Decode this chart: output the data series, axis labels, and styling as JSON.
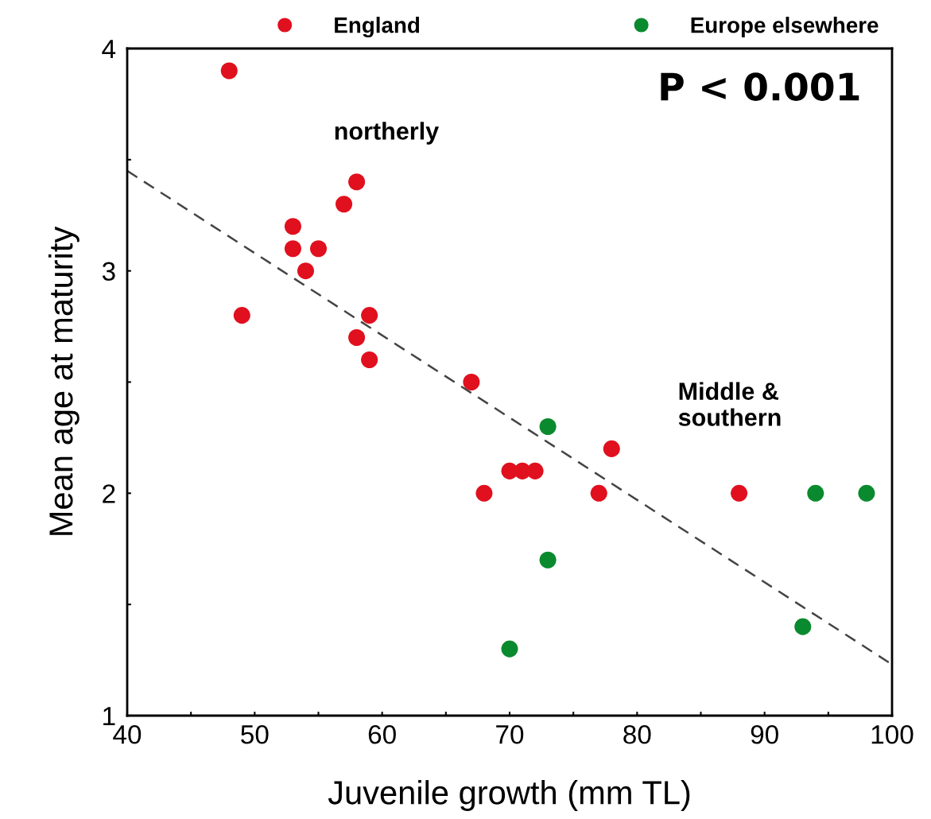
{
  "chart_data": {
    "type": "scatter",
    "xlabel": "Juvenile growth (mm TL)",
    "ylabel": "Mean age at maturity",
    "annotations": [
      "P < 0.001",
      "northerly",
      "Middle &\nsouthern"
    ],
    "series": [
      {
        "name": "England",
        "color": "#e0101f",
        "x": [
          48,
          49,
          53,
          53,
          54,
          55,
          57,
          58,
          58,
          59,
          59,
          67,
          68,
          70,
          71,
          72,
          77,
          78,
          88
        ],
        "values": [
          3.9,
          2.8,
          3.2,
          3.1,
          3.0,
          3.1,
          3.3,
          3.4,
          2.7,
          2.8,
          2.6,
          2.5,
          2.0,
          2.1,
          2.1,
          2.1,
          2.0,
          2.2,
          2.0
        ]
      },
      {
        "name": "Europe elsewhere",
        "color": "#0a8a2e",
        "x": [
          70,
          73,
          73,
          93,
          94,
          98
        ],
        "values": [
          1.3,
          1.7,
          2.3,
          1.4,
          2.0,
          2.0
        ]
      },
      {
        "type": "line",
        "color": "#444444",
        "line_style": "dashed",
        "marker": "none",
        "x": [
          40,
          100
        ],
        "values": [
          3.45,
          1.23
        ]
      }
    ],
    "marker": "circle",
    "legend": "top",
    "grid": false,
    "xlim": [
      40,
      100
    ],
    "xticks": [
      40,
      {
        "value": 45,
        "label": null
      },
      50,
      {
        "value": 55,
        "label": null
      },
      60,
      {
        "value": 65,
        "label": null
      },
      70,
      {
        "value": 75,
        "label": null
      },
      80,
      {
        "value": 85,
        "label": null
      },
      90,
      {
        "value": 95,
        "label": null
      },
      100
    ],
    "ylim": [
      1,
      4
    ],
    "yticks": [
      1,
      {
        "value": 1.5,
        "label": null
      },
      2,
      {
        "value": 2.5,
        "label": null
      },
      3,
      {
        "value": 3.5,
        "label": null
      },
      4
    ]
  }
}
